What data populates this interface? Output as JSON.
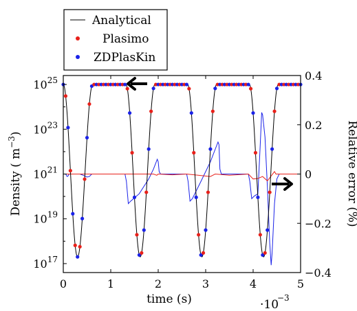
{
  "chart_data": {
    "type": "line",
    "xlabel": "time (s)",
    "x_multiplier": "·10",
    "x_multiplier_exp": "−3",
    "ylabel_left_main": "Density ( m",
    "ylabel_left_exp": "−3",
    "ylabel_left_close": ")",
    "ylabel_right": "Relative error (%)",
    "xlim": [
      0,
      5
    ],
    "ylim_left_log10": [
      16.6,
      25.4
    ],
    "ylim_right": [
      -0.4,
      0.4
    ],
    "x_ticks": [
      {
        "v": 0,
        "label": "0"
      },
      {
        "v": 1,
        "label": "1"
      },
      {
        "v": 2,
        "label": "2"
      },
      {
        "v": 3,
        "label": "3"
      },
      {
        "v": 4,
        "label": "4"
      },
      {
        "v": 5,
        "label": "5"
      }
    ],
    "y_left_ticks": [
      {
        "v": 17,
        "base": "10",
        "exp": "17"
      },
      {
        "v": 19,
        "base": "10",
        "exp": "19"
      },
      {
        "v": 21,
        "base": "10",
        "exp": "21"
      },
      {
        "v": 23,
        "base": "10",
        "exp": "23"
      },
      {
        "v": 25,
        "base": "10",
        "exp": "25"
      }
    ],
    "y_right_ticks": [
      {
        "v": 0.4,
        "label": "0.4"
      },
      {
        "v": 0.2,
        "label": "0.2"
      },
      {
        "v": 0,
        "label": "0"
      },
      {
        "v": -0.2,
        "label": "−0.2"
      },
      {
        "v": -0.4,
        "label": "−0.4"
      }
    ],
    "legend": {
      "placement": "top-left outside",
      "entries": [
        {
          "label": "Analytical",
          "style": "line",
          "color": "#000000"
        },
        {
          "label": "Plasimo",
          "style": "marker",
          "color": "#e8201a"
        },
        {
          "label": "ZDPlasKin",
          "style": "marker",
          "color": "#1a22e8"
        }
      ]
    },
    "density_series": {
      "analytical_color": "#000000",
      "plasimo_color": "#e8201a",
      "zdplaskin_color": "#1a22e8",
      "high_log10": 25,
      "low_log10": 17.3,
      "cycles": [
        {
          "fall_start": 0.0,
          "min_t": 0.3,
          "rise_end": 0.62,
          "plateau_end": 1.32
        },
        {
          "fall_start": 1.32,
          "min_t": 1.62,
          "rise_end": 1.93,
          "plateau_end": 2.62
        },
        {
          "fall_start": 2.62,
          "min_t": 2.92,
          "rise_end": 3.23,
          "plateau_end": 3.92
        },
        {
          "fall_start": 3.92,
          "min_t": 4.22,
          "rise_end": 4.53,
          "plateau_end": 5.0
        }
      ]
    },
    "error_series": [
      {
        "name": "ZDPlasKin relative error",
        "color": "#1a22e8",
        "points": [
          [
            0,
            0
          ],
          [
            0.05,
            0
          ],
          [
            0.08,
            -0.01
          ],
          [
            0.1,
            -0.008
          ],
          [
            0.12,
            0
          ],
          [
            0.35,
            0
          ],
          [
            0.42,
            -0.005
          ],
          [
            0.5,
            -0.012
          ],
          [
            0.55,
            -0.01
          ],
          [
            0.6,
            0
          ],
          [
            1.3,
            0
          ],
          [
            1.33,
            -0.03
          ],
          [
            1.37,
            -0.12
          ],
          [
            1.42,
            -0.11
          ],
          [
            1.6,
            -0.08
          ],
          [
            1.8,
            -0.02
          ],
          [
            1.9,
            0.02
          ],
          [
            1.98,
            0.06
          ],
          [
            2.0,
            0.05
          ],
          [
            2.02,
            0.01
          ],
          [
            2.05,
            0
          ],
          [
            2.6,
            0
          ],
          [
            2.63,
            -0.03
          ],
          [
            2.67,
            -0.11
          ],
          [
            2.72,
            -0.1
          ],
          [
            2.9,
            -0.03
          ],
          [
            3.1,
            0.05
          ],
          [
            3.2,
            0.1
          ],
          [
            3.26,
            0.13
          ],
          [
            3.28,
            0.12
          ],
          [
            3.3,
            0.02
          ],
          [
            3.33,
            0
          ],
          [
            3.9,
            0
          ],
          [
            3.93,
            -0.03
          ],
          [
            3.97,
            -0.1
          ],
          [
            4.02,
            -0.09
          ],
          [
            4.1,
            -0.08
          ],
          [
            4.15,
            0.12
          ],
          [
            4.18,
            0.25
          ],
          [
            4.2,
            0.24
          ],
          [
            4.25,
            0.15
          ],
          [
            4.3,
            -0.05
          ],
          [
            4.35,
            -0.28
          ],
          [
            4.38,
            -0.37
          ],
          [
            4.4,
            -0.32
          ],
          [
            4.45,
            -0.12
          ],
          [
            4.5,
            -0.02
          ],
          [
            4.55,
            0
          ],
          [
            5.0,
            0
          ]
        ]
      },
      {
        "name": "Plasimo relative error",
        "color": "#e8201a",
        "points": [
          [
            0,
            0
          ],
          [
            1.9,
            0
          ],
          [
            1.97,
            -0.005
          ],
          [
            2.0,
            0
          ],
          [
            2.3,
            -0.003
          ],
          [
            2.6,
            0
          ],
          [
            3.1,
            -0.01
          ],
          [
            3.2,
            0
          ],
          [
            3.5,
            -0.005
          ],
          [
            3.9,
            0
          ],
          [
            4.0,
            -0.02
          ],
          [
            4.1,
            -0.018
          ],
          [
            4.2,
            -0.01
          ],
          [
            4.3,
            -0.028
          ],
          [
            4.45,
            0.01
          ],
          [
            4.48,
            0.0
          ],
          [
            5.0,
            0
          ]
        ]
      }
    ]
  }
}
